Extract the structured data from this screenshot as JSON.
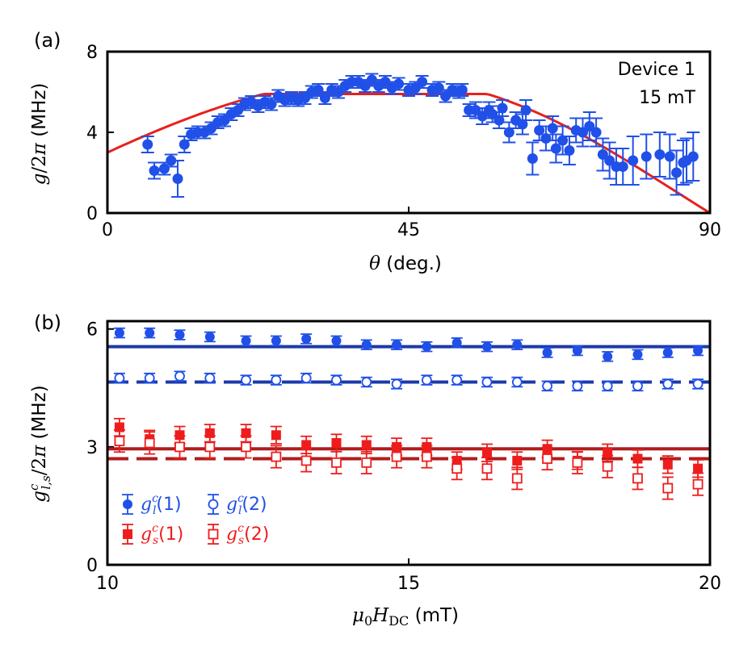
{
  "chart_data": [
    {
      "panel": "(a)",
      "type": "scatter",
      "annotation_device": "Device 1",
      "annotation_field": "15 mT",
      "xlabel": "θ (deg.)",
      "ylabel": "g/2π (MHz)",
      "xlim": [
        0,
        90
      ],
      "ylim": [
        0,
        8
      ],
      "xticks": [
        0,
        45,
        90
      ],
      "yticks": [
        0,
        4,
        8
      ],
      "colors": {
        "points": "#2050e8",
        "fit": "#e8201c"
      },
      "points": [
        [
          6,
          3.4,
          0.4
        ],
        [
          7,
          2.1,
          0.4
        ],
        [
          8.5,
          2.2,
          0.3
        ],
        [
          9.5,
          2.6,
          0.3
        ],
        [
          10.5,
          1.7,
          0.9
        ],
        [
          11.5,
          3.4,
          0.4
        ],
        [
          12.5,
          3.9,
          0.3
        ],
        [
          13.5,
          4.0,
          0.3
        ],
        [
          14.5,
          4.0,
          0.3
        ],
        [
          15.5,
          4.2,
          0.3
        ],
        [
          16.5,
          4.5,
          0.3
        ],
        [
          17.5,
          4.6,
          0.3
        ],
        [
          18.5,
          4.9,
          0.3
        ],
        [
          19.5,
          5.1,
          0.3
        ],
        [
          20.5,
          5.4,
          0.3
        ],
        [
          21.5,
          5.5,
          0.3
        ],
        [
          22.5,
          5.3,
          0.3
        ],
        [
          23.5,
          5.5,
          0.3
        ],
        [
          24.5,
          5.4,
          0.3
        ],
        [
          25.5,
          5.8,
          0.3
        ],
        [
          26.5,
          5.6,
          0.3
        ],
        [
          27.5,
          5.7,
          0.3
        ],
        [
          28.5,
          5.6,
          0.3
        ],
        [
          29.5,
          5.7,
          0.3
        ],
        [
          30.5,
          6.0,
          0.3
        ],
        [
          31.5,
          6.1,
          0.3
        ],
        [
          32.5,
          5.7,
          0.3
        ],
        [
          33.5,
          6.1,
          0.3
        ],
        [
          34.5,
          6.0,
          0.3
        ],
        [
          35.5,
          6.3,
          0.3
        ],
        [
          36.5,
          6.5,
          0.3
        ],
        [
          37.5,
          6.5,
          0.3
        ],
        [
          38.5,
          6.3,
          0.3
        ],
        [
          39.5,
          6.6,
          0.3
        ],
        [
          40.5,
          6.3,
          0.3
        ],
        [
          41.5,
          6.5,
          0.3
        ],
        [
          42.5,
          6.2,
          0.3
        ],
        [
          43.5,
          6.4,
          0.3
        ],
        [
          45,
          6.1,
          0.3
        ],
        [
          46,
          6.2,
          0.3
        ],
        [
          47,
          6.5,
          0.3
        ],
        [
          48.5,
          6.1,
          0.3
        ],
        [
          49.5,
          6.2,
          0.3
        ],
        [
          50.5,
          5.8,
          0.3
        ],
        [
          51.5,
          6.1,
          0.3
        ],
        [
          52.5,
          6.0,
          0.3
        ],
        [
          53,
          6.1,
          0.3
        ],
        [
          54,
          5.1,
          0.3
        ],
        [
          55,
          5.1,
          0.4
        ],
        [
          56,
          4.8,
          0.4
        ],
        [
          57,
          5.1,
          0.4
        ],
        [
          57.5,
          4.9,
          0.4
        ],
        [
          58.5,
          4.6,
          0.4
        ],
        [
          59,
          5.2,
          0.4
        ],
        [
          60,
          4.0,
          0.5
        ],
        [
          61,
          4.6,
          0.4
        ],
        [
          62,
          4.4,
          0.5
        ],
        [
          62.5,
          5.1,
          0.5
        ],
        [
          63.5,
          2.7,
          0.8
        ],
        [
          64.5,
          4.1,
          0.5
        ],
        [
          65.5,
          3.7,
          0.6
        ],
        [
          66.5,
          4.2,
          0.6
        ],
        [
          67,
          3.2,
          0.7
        ],
        [
          68,
          3.6,
          0.7
        ],
        [
          69,
          3.1,
          0.7
        ],
        [
          70,
          4.1,
          0.6
        ],
        [
          71,
          4.0,
          0.7
        ],
        [
          72,
          4.3,
          0.7
        ],
        [
          73,
          4.0,
          0.7
        ],
        [
          74,
          2.9,
          0.8
        ],
        [
          75,
          2.6,
          0.9
        ],
        [
          76,
          2.3,
          0.9
        ],
        [
          77,
          2.3,
          0.9
        ],
        [
          78.5,
          2.6,
          1.2
        ],
        [
          80.5,
          2.8,
          1.1
        ],
        [
          82.5,
          2.9,
          1.1
        ],
        [
          84,
          2.8,
          1.1
        ],
        [
          85,
          2.0,
          1.1
        ],
        [
          86,
          2.5,
          1.1
        ],
        [
          86.5,
          2.6,
          1.1
        ],
        [
          87.5,
          2.8,
          1.2
        ]
      ],
      "fit_curve": {
        "description": "fit",
        "peak": 5.9,
        "theta_at_peak": 45
      }
    },
    {
      "panel": "(b)",
      "type": "scatter",
      "xlabel": "μ0HDC (mT)",
      "ylabel": "g^c_{l,s}/2π (MHz)",
      "xlim": [
        10,
        20
      ],
      "ylim": [
        0,
        6.2
      ],
      "xticks": [
        10,
        15,
        20
      ],
      "yticks": [
        0,
        3,
        6
      ],
      "x": [
        10.2,
        10.7,
        11.2,
        11.7,
        12.3,
        12.8,
        13.3,
        13.8,
        14.3,
        14.8,
        15.3,
        15.8,
        16.3,
        16.8,
        17.3,
        17.8,
        18.3,
        18.8,
        19.3,
        19.8
      ],
      "series": [
        {
          "name": "g_l^c (1)",
          "legend": "g",
          "sup": "c",
          "sub": "l",
          "suffix": "(1)",
          "marker": "circle-filled",
          "color": "#2050e8",
          "line_color": "#1c3aa8",
          "line": "solid",
          "line_level": 5.55,
          "err": 0.12,
          "values": [
            5.9,
            5.9,
            5.85,
            5.8,
            5.7,
            5.7,
            5.75,
            5.7,
            5.6,
            5.6,
            5.55,
            5.65,
            5.55,
            5.6,
            5.4,
            5.45,
            5.3,
            5.35,
            5.4,
            5.45
          ]
        },
        {
          "name": "g_l^c (2)",
          "legend": "g",
          "sup": "c",
          "sub": "l",
          "suffix": "(2)",
          "marker": "circle-open",
          "color": "#2050e8",
          "line_color": "#1c3aa8",
          "line": "dashed",
          "line_level": 4.65,
          "err": 0.12,
          "values": [
            4.75,
            4.75,
            4.8,
            4.75,
            4.7,
            4.7,
            4.75,
            4.7,
            4.65,
            4.6,
            4.7,
            4.7,
            4.65,
            4.65,
            4.55,
            4.55,
            4.55,
            4.55,
            4.6,
            4.6
          ]
        },
        {
          "name": "g_s^c (1)",
          "legend": "g",
          "sup": "c",
          "sub": "s",
          "suffix": "(1)",
          "marker": "square-filled",
          "color": "#ee1c1c",
          "line_color": "#b01c1c",
          "line": "solid",
          "line_level": 2.95,
          "err": 0.22,
          "values": [
            3.5,
            3.2,
            3.3,
            3.35,
            3.35,
            3.3,
            3.05,
            3.1,
            3.05,
            3.0,
            3.0,
            2.65,
            2.85,
            2.65,
            2.95,
            2.65,
            2.85,
            2.7,
            2.55,
            2.45
          ]
        },
        {
          "name": "g_s^c (2)",
          "legend": "g",
          "sup": "c",
          "sub": "s",
          "suffix": "(2)",
          "marker": "square-open",
          "color": "#ee1c1c",
          "line_color": "#b01c1c",
          "line": "dashed",
          "line_level": 2.7,
          "err": 0.28,
          "values": [
            3.15,
            3.1,
            3.0,
            3.0,
            3.0,
            2.75,
            2.65,
            2.6,
            2.6,
            2.75,
            2.75,
            2.45,
            2.45,
            2.2,
            2.7,
            2.6,
            2.5,
            2.2,
            1.95,
            2.05
          ]
        }
      ]
    }
  ]
}
